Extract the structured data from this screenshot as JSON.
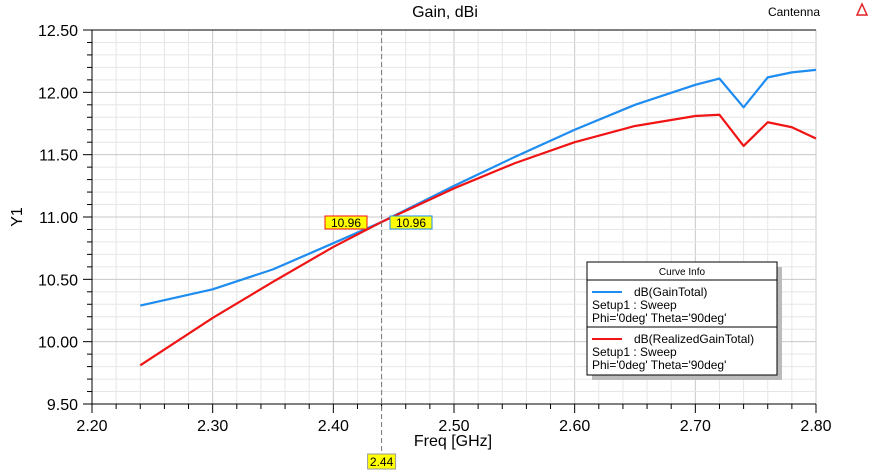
{
  "chart_data": {
    "type": "line",
    "title": "Gain, dBi",
    "project_label": "Cantenna",
    "xlabel": "Freq [GHz]",
    "ylabel": "Y1",
    "xlim": [
      2.2,
      2.8
    ],
    "ylim": [
      9.5,
      12.5
    ],
    "xticks": [
      "2.20",
      "2.30",
      "2.40",
      "2.50",
      "2.60",
      "2.70",
      "2.80"
    ],
    "yticks": [
      "9.50",
      "10.00",
      "10.50",
      "11.00",
      "11.50",
      "12.00",
      "12.50"
    ],
    "grid": true,
    "legend": {
      "title": "Curve Info",
      "placement": "bottom-right",
      "entries": [
        {
          "name": "dB(GainTotal)",
          "line2": "Setup1 : Sweep",
          "line3": "Phi='0deg' Theta='90deg'"
        },
        {
          "name": "dB(RealizedGainTotal)",
          "line2": "Setup1 : Sweep",
          "line3": "Phi='0deg' Theta='90deg'"
        }
      ]
    },
    "marker": {
      "x": 2.44,
      "x_label": "2.44",
      "labels": [
        "10.96",
        "10.96"
      ]
    },
    "series": [
      {
        "name": "dB(GainTotal)",
        "color": "#1e8cf0",
        "x": [
          2.24,
          2.3,
          2.35,
          2.4,
          2.44,
          2.5,
          2.55,
          2.6,
          2.65,
          2.7,
          2.72,
          2.74,
          2.76,
          2.78,
          2.8
        ],
        "y": [
          10.29,
          10.42,
          10.58,
          10.79,
          10.96,
          11.25,
          11.48,
          11.7,
          11.9,
          12.06,
          12.11,
          11.88,
          12.12,
          12.16,
          12.18
        ]
      },
      {
        "name": "dB(RealizedGainTotal)",
        "color": "#f01414",
        "x": [
          2.24,
          2.3,
          2.35,
          2.4,
          2.44,
          2.5,
          2.55,
          2.6,
          2.65,
          2.7,
          2.72,
          2.74,
          2.76,
          2.78,
          2.8
        ],
        "y": [
          9.81,
          10.19,
          10.48,
          10.76,
          10.96,
          11.23,
          11.43,
          11.6,
          11.73,
          11.81,
          11.82,
          11.57,
          11.76,
          11.72,
          11.63
        ]
      }
    ]
  }
}
